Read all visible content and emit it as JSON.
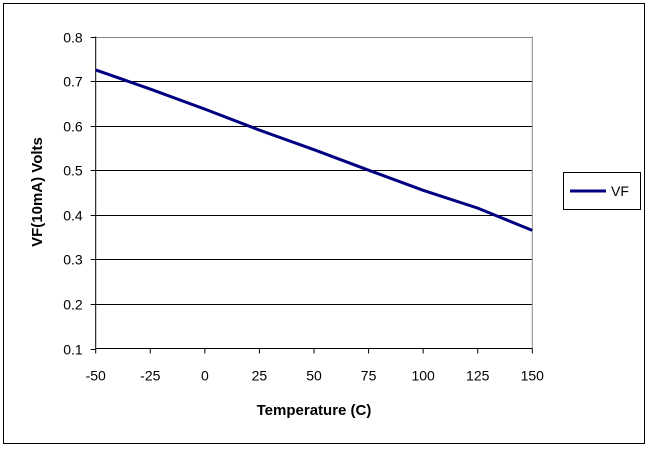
{
  "chart_data": {
    "type": "line",
    "title": "",
    "xlabel": "Temperature (C)",
    "ylabel": "VF(10mA) Volts",
    "xlim": [
      -50,
      150
    ],
    "ylim": [
      0.1,
      0.8
    ],
    "xticks": [
      "-50",
      "-25",
      "0",
      "25",
      "50",
      "75",
      "100",
      "125",
      "150"
    ],
    "yticks": [
      "0.1",
      "0.2",
      "0.3",
      "0.4",
      "0.5",
      "0.6",
      "0.7",
      "0.8"
    ],
    "grid": "horizontal",
    "legend_position": "right",
    "x": [
      -50,
      -25,
      0,
      25,
      50,
      75,
      100,
      125,
      150
    ],
    "series": [
      {
        "name": "VF",
        "color": "#000080",
        "values": [
          0.725,
          0.682,
          0.637,
          0.59,
          0.546,
          0.5,
          0.455,
          0.415,
          0.365
        ]
      }
    ]
  }
}
